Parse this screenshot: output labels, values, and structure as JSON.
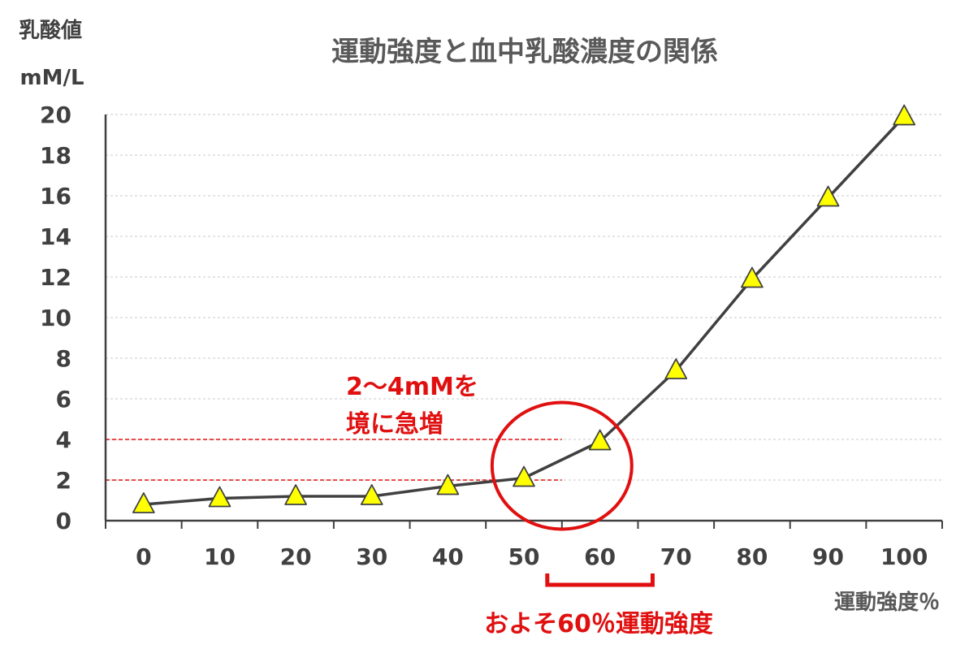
{
  "chart_data": {
    "type": "line",
    "title": "運動強度と血中乳酸濃度の関係",
    "ylabel_line1": "乳酸値",
    "ylabel_line2": "mM/L",
    "xlabel": "運動強度％",
    "x": [
      0,
      10,
      20,
      30,
      40,
      50,
      60,
      70,
      80,
      90,
      100
    ],
    "series": [
      {
        "values": [
          0.8,
          1.1,
          1.2,
          1.2,
          1.7,
          2.1,
          3.9,
          7.4,
          11.9,
          15.9,
          19.9
        ]
      }
    ],
    "ylim": [
      0,
      20
    ],
    "yticks": [
      0,
      2,
      4,
      6,
      8,
      10,
      12,
      14,
      16,
      18,
      20
    ],
    "xlim": [
      -5,
      105
    ],
    "xtick_labels": [
      "0",
      "10",
      "20",
      "30",
      "40",
      "50",
      "60",
      "70",
      "80",
      "90",
      "100"
    ],
    "grid": true,
    "marker": "triangle",
    "colors": {
      "line": "#404040",
      "marker_fill": "#ffff00",
      "marker_stroke": "#404040",
      "annotation": "#e01010",
      "grid": "#c8c8c8"
    },
    "annotations": {
      "threshold_lines": [
        2,
        4
      ],
      "threshold_text_line1": "2〜4mMを",
      "threshold_text_line2": "境に急増",
      "circle_center": [
        55,
        2.7
      ],
      "bracket_range": [
        55,
        65
      ],
      "bracket_text": "およそ60％運動強度"
    }
  }
}
